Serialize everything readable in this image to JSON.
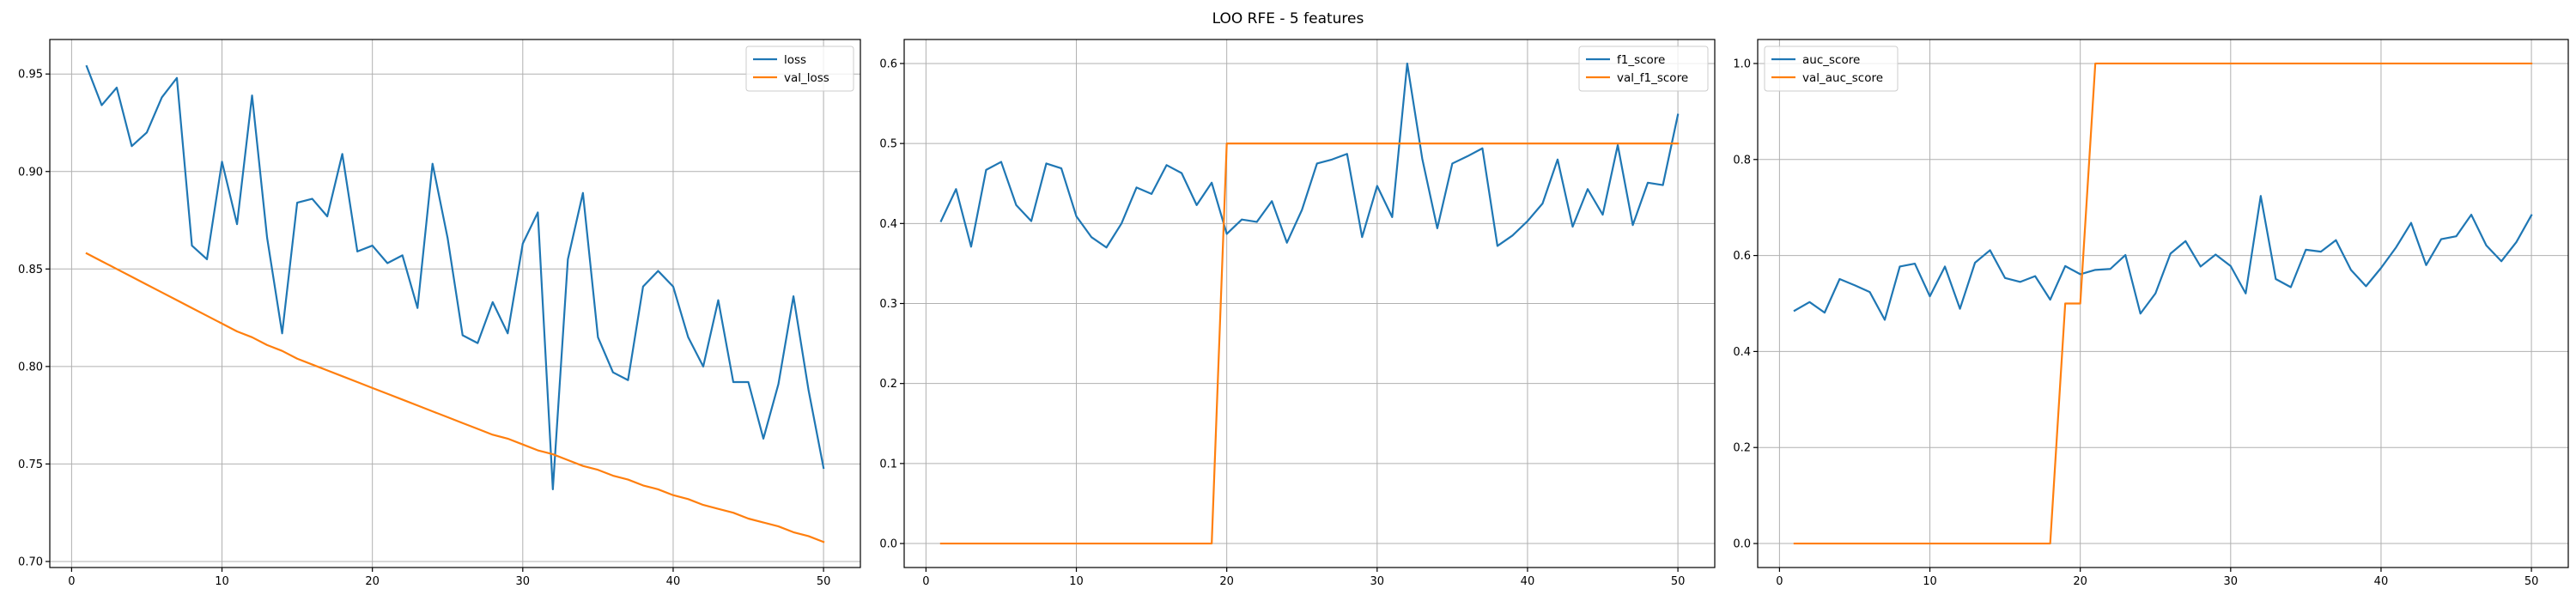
{
  "figure": {
    "suptitle": "LOO RFE - 5 features"
  },
  "chart_data": [
    {
      "type": "line",
      "title": "",
      "xlabel": "",
      "ylabel": "",
      "xlim": [
        -1.45,
        52.45
      ],
      "ylim": [
        0.6969,
        0.9677
      ],
      "xticks": [
        0,
        10,
        20,
        30,
        40,
        50
      ],
      "yticks": [
        0.7,
        0.75,
        0.8,
        0.85,
        0.9,
        0.95
      ],
      "ytick_labels": [
        "0.70",
        "0.75",
        "0.80",
        "0.85",
        "0.90",
        "0.95"
      ],
      "grid": true,
      "legend": "upper right",
      "series": [
        {
          "name": "loss",
          "color": "#1f77b4",
          "x": [
            1,
            2,
            3,
            4,
            5,
            6,
            7,
            8,
            9,
            10,
            11,
            12,
            13,
            14,
            15,
            16,
            17,
            18,
            19,
            20,
            21,
            22,
            23,
            24,
            25,
            26,
            27,
            28,
            29,
            30,
            31,
            32,
            33,
            34,
            35,
            36,
            37,
            38,
            39,
            40,
            41,
            42,
            43,
            44,
            45,
            46,
            47,
            48,
            49,
            50
          ],
          "values": [
            0.954,
            0.934,
            0.943,
            0.913,
            0.92,
            0.938,
            0.948,
            0.862,
            0.855,
            0.905,
            0.873,
            0.939,
            0.866,
            0.817,
            0.884,
            0.886,
            0.877,
            0.909,
            0.859,
            0.862,
            0.853,
            0.857,
            0.83,
            0.904,
            0.866,
            0.816,
            0.812,
            0.833,
            0.817,
            0.863,
            0.879,
            0.737,
            0.855,
            0.889,
            0.815,
            0.797,
            0.793,
            0.841,
            0.849,
            0.841,
            0.815,
            0.8,
            0.834,
            0.792,
            0.792,
            0.763,
            0.791,
            0.836,
            0.788,
            0.748
          ]
        },
        {
          "name": "val_loss",
          "color": "#ff7f0e",
          "x": [
            1,
            2,
            3,
            4,
            5,
            6,
            7,
            8,
            9,
            10,
            11,
            12,
            13,
            14,
            15,
            16,
            17,
            18,
            19,
            20,
            21,
            22,
            23,
            24,
            25,
            26,
            27,
            28,
            29,
            30,
            31,
            32,
            33,
            34,
            35,
            36,
            37,
            38,
            39,
            40,
            41,
            42,
            43,
            44,
            45,
            46,
            47,
            48,
            49,
            50
          ],
          "values": [
            0.858,
            0.854,
            0.85,
            0.846,
            0.842,
            0.838,
            0.834,
            0.83,
            0.826,
            0.822,
            0.818,
            0.815,
            0.811,
            0.808,
            0.804,
            0.801,
            0.798,
            0.795,
            0.792,
            0.789,
            0.786,
            0.783,
            0.78,
            0.777,
            0.774,
            0.771,
            0.768,
            0.765,
            0.763,
            0.76,
            0.757,
            0.755,
            0.752,
            0.749,
            0.747,
            0.744,
            0.742,
            0.739,
            0.737,
            0.734,
            0.732,
            0.729,
            0.727,
            0.725,
            0.722,
            0.72,
            0.718,
            0.715,
            0.713,
            0.71
          ]
        }
      ]
    },
    {
      "type": "line",
      "title": "",
      "xlabel": "",
      "ylabel": "",
      "xlim": [
        -1.45,
        52.45
      ],
      "ylim": [
        -0.03,
        0.63
      ],
      "xticks": [
        0,
        10,
        20,
        30,
        40,
        50
      ],
      "yticks": [
        0.0,
        0.1,
        0.2,
        0.3,
        0.4,
        0.5,
        0.6
      ],
      "ytick_labels": [
        "0.0",
        "0.1",
        "0.2",
        "0.3",
        "0.4",
        "0.5",
        "0.6"
      ],
      "grid": true,
      "legend": "upper right",
      "series": [
        {
          "name": "f1_score",
          "color": "#1f77b4",
          "x": [
            1,
            2,
            3,
            4,
            5,
            6,
            7,
            8,
            9,
            10,
            11,
            12,
            13,
            14,
            15,
            16,
            17,
            18,
            19,
            20,
            21,
            22,
            23,
            24,
            25,
            26,
            27,
            28,
            29,
            30,
            31,
            32,
            33,
            34,
            35,
            36,
            37,
            38,
            39,
            40,
            41,
            42,
            43,
            44,
            45,
            46,
            47,
            48,
            49,
            50
          ],
          "values": [
            0.403,
            0.443,
            0.371,
            0.467,
            0.477,
            0.423,
            0.403,
            0.475,
            0.469,
            0.409,
            0.383,
            0.37,
            0.4,
            0.445,
            0.437,
            0.473,
            0.463,
            0.423,
            0.451,
            0.387,
            0.405,
            0.402,
            0.428,
            0.376,
            0.417,
            0.475,
            0.48,
            0.487,
            0.383,
            0.447,
            0.408,
            0.6,
            0.481,
            0.394,
            0.475,
            0.484,
            0.494,
            0.372,
            0.385,
            0.403,
            0.425,
            0.48,
            0.396,
            0.443,
            0.411,
            0.498,
            0.398,
            0.451,
            0.448,
            0.536
          ]
        },
        {
          "name": "val_f1_score",
          "color": "#ff7f0e",
          "x": [
            1,
            2,
            3,
            4,
            5,
            6,
            7,
            8,
            9,
            10,
            11,
            12,
            13,
            14,
            15,
            16,
            17,
            18,
            19,
            20,
            21,
            22,
            23,
            24,
            25,
            26,
            27,
            28,
            29,
            30,
            31,
            32,
            33,
            34,
            35,
            36,
            37,
            38,
            39,
            40,
            41,
            42,
            43,
            44,
            45,
            46,
            47,
            48,
            49,
            50
          ],
          "values": [
            0,
            0,
            0,
            0,
            0,
            0,
            0,
            0,
            0,
            0,
            0,
            0,
            0,
            0,
            0,
            0,
            0,
            0,
            0,
            0.5,
            0.5,
            0.5,
            0.5,
            0.5,
            0.5,
            0.5,
            0.5,
            0.5,
            0.5,
            0.5,
            0.5,
            0.5,
            0.5,
            0.5,
            0.5,
            0.5,
            0.5,
            0.5,
            0.5,
            0.5,
            0.5,
            0.5,
            0.5,
            0.5,
            0.5,
            0.5,
            0.5,
            0.5,
            0.5,
            0.5
          ]
        }
      ]
    },
    {
      "type": "line",
      "title": "",
      "xlabel": "",
      "ylabel": "",
      "xlim": [
        -1.45,
        52.45
      ],
      "ylim": [
        -0.05,
        1.05
      ],
      "xticks": [
        0,
        10,
        20,
        30,
        40,
        50
      ],
      "yticks": [
        0.0,
        0.2,
        0.4,
        0.6,
        0.8,
        1.0
      ],
      "ytick_labels": [
        "0.0",
        "0.2",
        "0.4",
        "0.6",
        "0.8",
        "1.0"
      ],
      "grid": true,
      "legend": "upper left",
      "series": [
        {
          "name": "auc_score",
          "color": "#1f77b4",
          "x": [
            1,
            2,
            3,
            4,
            5,
            6,
            7,
            8,
            9,
            10,
            11,
            12,
            13,
            14,
            15,
            16,
            17,
            18,
            19,
            20,
            21,
            22,
            23,
            24,
            25,
            26,
            27,
            28,
            29,
            30,
            31,
            32,
            33,
            34,
            35,
            36,
            37,
            38,
            39,
            40,
            41,
            42,
            43,
            44,
            45,
            46,
            47,
            48,
            49,
            50
          ],
          "values": [
            0.485,
            0.503,
            0.481,
            0.551,
            0.538,
            0.524,
            0.466,
            0.577,
            0.583,
            0.515,
            0.577,
            0.489,
            0.585,
            0.611,
            0.553,
            0.545,
            0.557,
            0.508,
            0.578,
            0.561,
            0.57,
            0.572,
            0.601,
            0.479,
            0.521,
            0.604,
            0.63,
            0.577,
            0.602,
            0.578,
            0.521,
            0.724,
            0.551,
            0.534,
            0.612,
            0.608,
            0.632,
            0.57,
            0.536,
            0.574,
            0.617,
            0.668,
            0.58,
            0.634,
            0.64,
            0.685,
            0.621,
            0.588,
            0.628,
            0.684
          ]
        },
        {
          "name": "val_auc_score",
          "color": "#ff7f0e",
          "x": [
            1,
            2,
            3,
            4,
            5,
            6,
            7,
            8,
            9,
            10,
            11,
            12,
            13,
            14,
            15,
            16,
            17,
            18,
            19,
            20,
            21,
            22,
            23,
            24,
            25,
            26,
            27,
            28,
            29,
            30,
            31,
            32,
            33,
            34,
            35,
            36,
            37,
            38,
            39,
            40,
            41,
            42,
            43,
            44,
            45,
            46,
            47,
            48,
            49,
            50
          ],
          "values": [
            0,
            0,
            0,
            0,
            0,
            0,
            0,
            0,
            0,
            0,
            0,
            0,
            0,
            0,
            0,
            0,
            0,
            0,
            0.5,
            0.5,
            1,
            1,
            1,
            1,
            1,
            1,
            1,
            1,
            1,
            1,
            1,
            1,
            1,
            1,
            1,
            1,
            1,
            1,
            1,
            1,
            1,
            1,
            1,
            1,
            1,
            1,
            1,
            1,
            1,
            1
          ]
        }
      ]
    }
  ]
}
